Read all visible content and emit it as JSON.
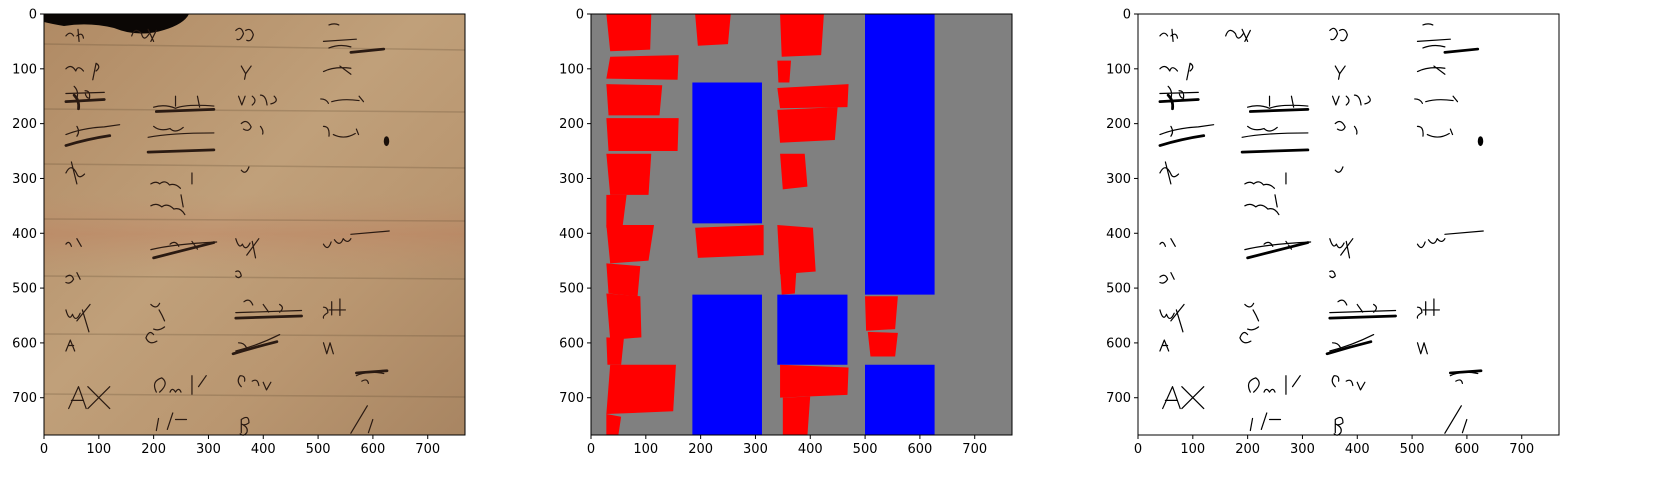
{
  "figure": {
    "panels": [
      {
        "name": "original-manuscript-image",
        "kind": "photo"
      },
      {
        "name": "segmentation-mask",
        "kind": "mask"
      },
      {
        "name": "binarized-text-image",
        "kind": "binary"
      }
    ],
    "axes": {
      "xlim": [
        0,
        768
      ],
      "ylim": [
        768,
        0
      ],
      "xticks": [
        "0",
        "100",
        "200",
        "300",
        "400",
        "500",
        "600",
        "700"
      ],
      "yticks": [
        "0",
        "100",
        "200",
        "300",
        "400",
        "500",
        "600",
        "700"
      ]
    },
    "colors": {
      "parchment": "#b8946c",
      "ink": "#2a1a12",
      "mask_background": "#808080",
      "mask_red": "#ff0000",
      "mask_blue": "#0000ff"
    },
    "mask_regions": {
      "red": [
        [
          [
            28,
            0
          ],
          [
            110,
            0
          ],
          [
            108,
            65
          ],
          [
            35,
            68
          ]
        ],
        [
          [
            190,
            0
          ],
          [
            255,
            0
          ],
          [
            250,
            55
          ],
          [
            195,
            58
          ]
        ],
        [
          [
            345,
            0
          ],
          [
            425,
            0
          ],
          [
            420,
            75
          ],
          [
            348,
            78
          ]
        ],
        [
          [
            35,
            78
          ],
          [
            160,
            75
          ],
          [
            158,
            120
          ],
          [
            28,
            118
          ]
        ],
        [
          [
            340,
            85
          ],
          [
            365,
            85
          ],
          [
            362,
            125
          ],
          [
            342,
            125
          ]
        ],
        [
          [
            28,
            128
          ],
          [
            130,
            130
          ],
          [
            125,
            185
          ],
          [
            32,
            185
          ]
        ],
        [
          [
            340,
            135
          ],
          [
            470,
            128
          ],
          [
            468,
            170
          ],
          [
            345,
            172
          ]
        ],
        [
          [
            28,
            190
          ],
          [
            160,
            190
          ],
          [
            158,
            250
          ],
          [
            32,
            250
          ]
        ],
        [
          [
            340,
            175
          ],
          [
            450,
            170
          ],
          [
            445,
            230
          ],
          [
            345,
            235
          ]
        ],
        [
          [
            28,
            255
          ],
          [
            110,
            255
          ],
          [
            105,
            330
          ],
          [
            35,
            330
          ]
        ],
        [
          [
            345,
            255
          ],
          [
            390,
            255
          ],
          [
            395,
            315
          ],
          [
            350,
            320
          ]
        ],
        [
          [
            28,
            330
          ],
          [
            65,
            330
          ],
          [
            58,
            385
          ],
          [
            28,
            390
          ]
        ],
        [
          [
            190,
            390
          ],
          [
            315,
            385
          ],
          [
            315,
            440
          ],
          [
            195,
            445
          ]
        ],
        [
          [
            28,
            385
          ],
          [
            115,
            385
          ],
          [
            105,
            450
          ],
          [
            35,
            455
          ]
        ],
        [
          [
            340,
            385
          ],
          [
            405,
            390
          ],
          [
            410,
            470
          ],
          [
            345,
            475
          ]
        ],
        [
          [
            28,
            455
          ],
          [
            90,
            460
          ],
          [
            85,
            515
          ],
          [
            32,
            510
          ]
        ],
        [
          [
            345,
            465
          ],
          [
            375,
            465
          ],
          [
            372,
            510
          ],
          [
            348,
            512
          ]
        ],
        [
          [
            28,
            510
          ],
          [
            90,
            515
          ],
          [
            92,
            590
          ],
          [
            35,
            595
          ]
        ],
        [
          [
            500,
            515
          ],
          [
            560,
            515
          ],
          [
            555,
            575
          ],
          [
            502,
            578
          ]
        ],
        [
          [
            505,
            580
          ],
          [
            560,
            582
          ],
          [
            555,
            625
          ],
          [
            510,
            625
          ]
        ],
        [
          [
            28,
            590
          ],
          [
            60,
            592
          ],
          [
            55,
            640
          ],
          [
            30,
            640
          ]
        ],
        [
          [
            35,
            640
          ],
          [
            155,
            640
          ],
          [
            150,
            725
          ],
          [
            28,
            730
          ]
        ],
        [
          [
            345,
            640
          ],
          [
            470,
            645
          ],
          [
            468,
            695
          ],
          [
            345,
            700
          ]
        ],
        [
          [
            350,
            700
          ],
          [
            400,
            698
          ],
          [
            395,
            768
          ],
          [
            350,
            768
          ]
        ],
        [
          [
            28,
            730
          ],
          [
            55,
            735
          ],
          [
            50,
            768
          ],
          [
            28,
            768
          ]
        ]
      ],
      "blue": [
        [
          [
            185,
            125
          ],
          [
            312,
            125
          ],
          [
            312,
            382
          ],
          [
            185,
            382
          ]
        ],
        [
          [
            500,
            0
          ],
          [
            627,
            0
          ],
          [
            627,
            512
          ],
          [
            500,
            512
          ]
        ],
        [
          [
            185,
            512
          ],
          [
            312,
            512
          ],
          [
            312,
            768
          ],
          [
            185,
            768
          ]
        ],
        [
          [
            340,
            512
          ],
          [
            468,
            512
          ],
          [
            468,
            640
          ],
          [
            340,
            640
          ]
        ],
        [
          [
            500,
            640
          ],
          [
            627,
            640
          ],
          [
            627,
            768
          ],
          [
            500,
            768
          ]
        ]
      ]
    }
  }
}
